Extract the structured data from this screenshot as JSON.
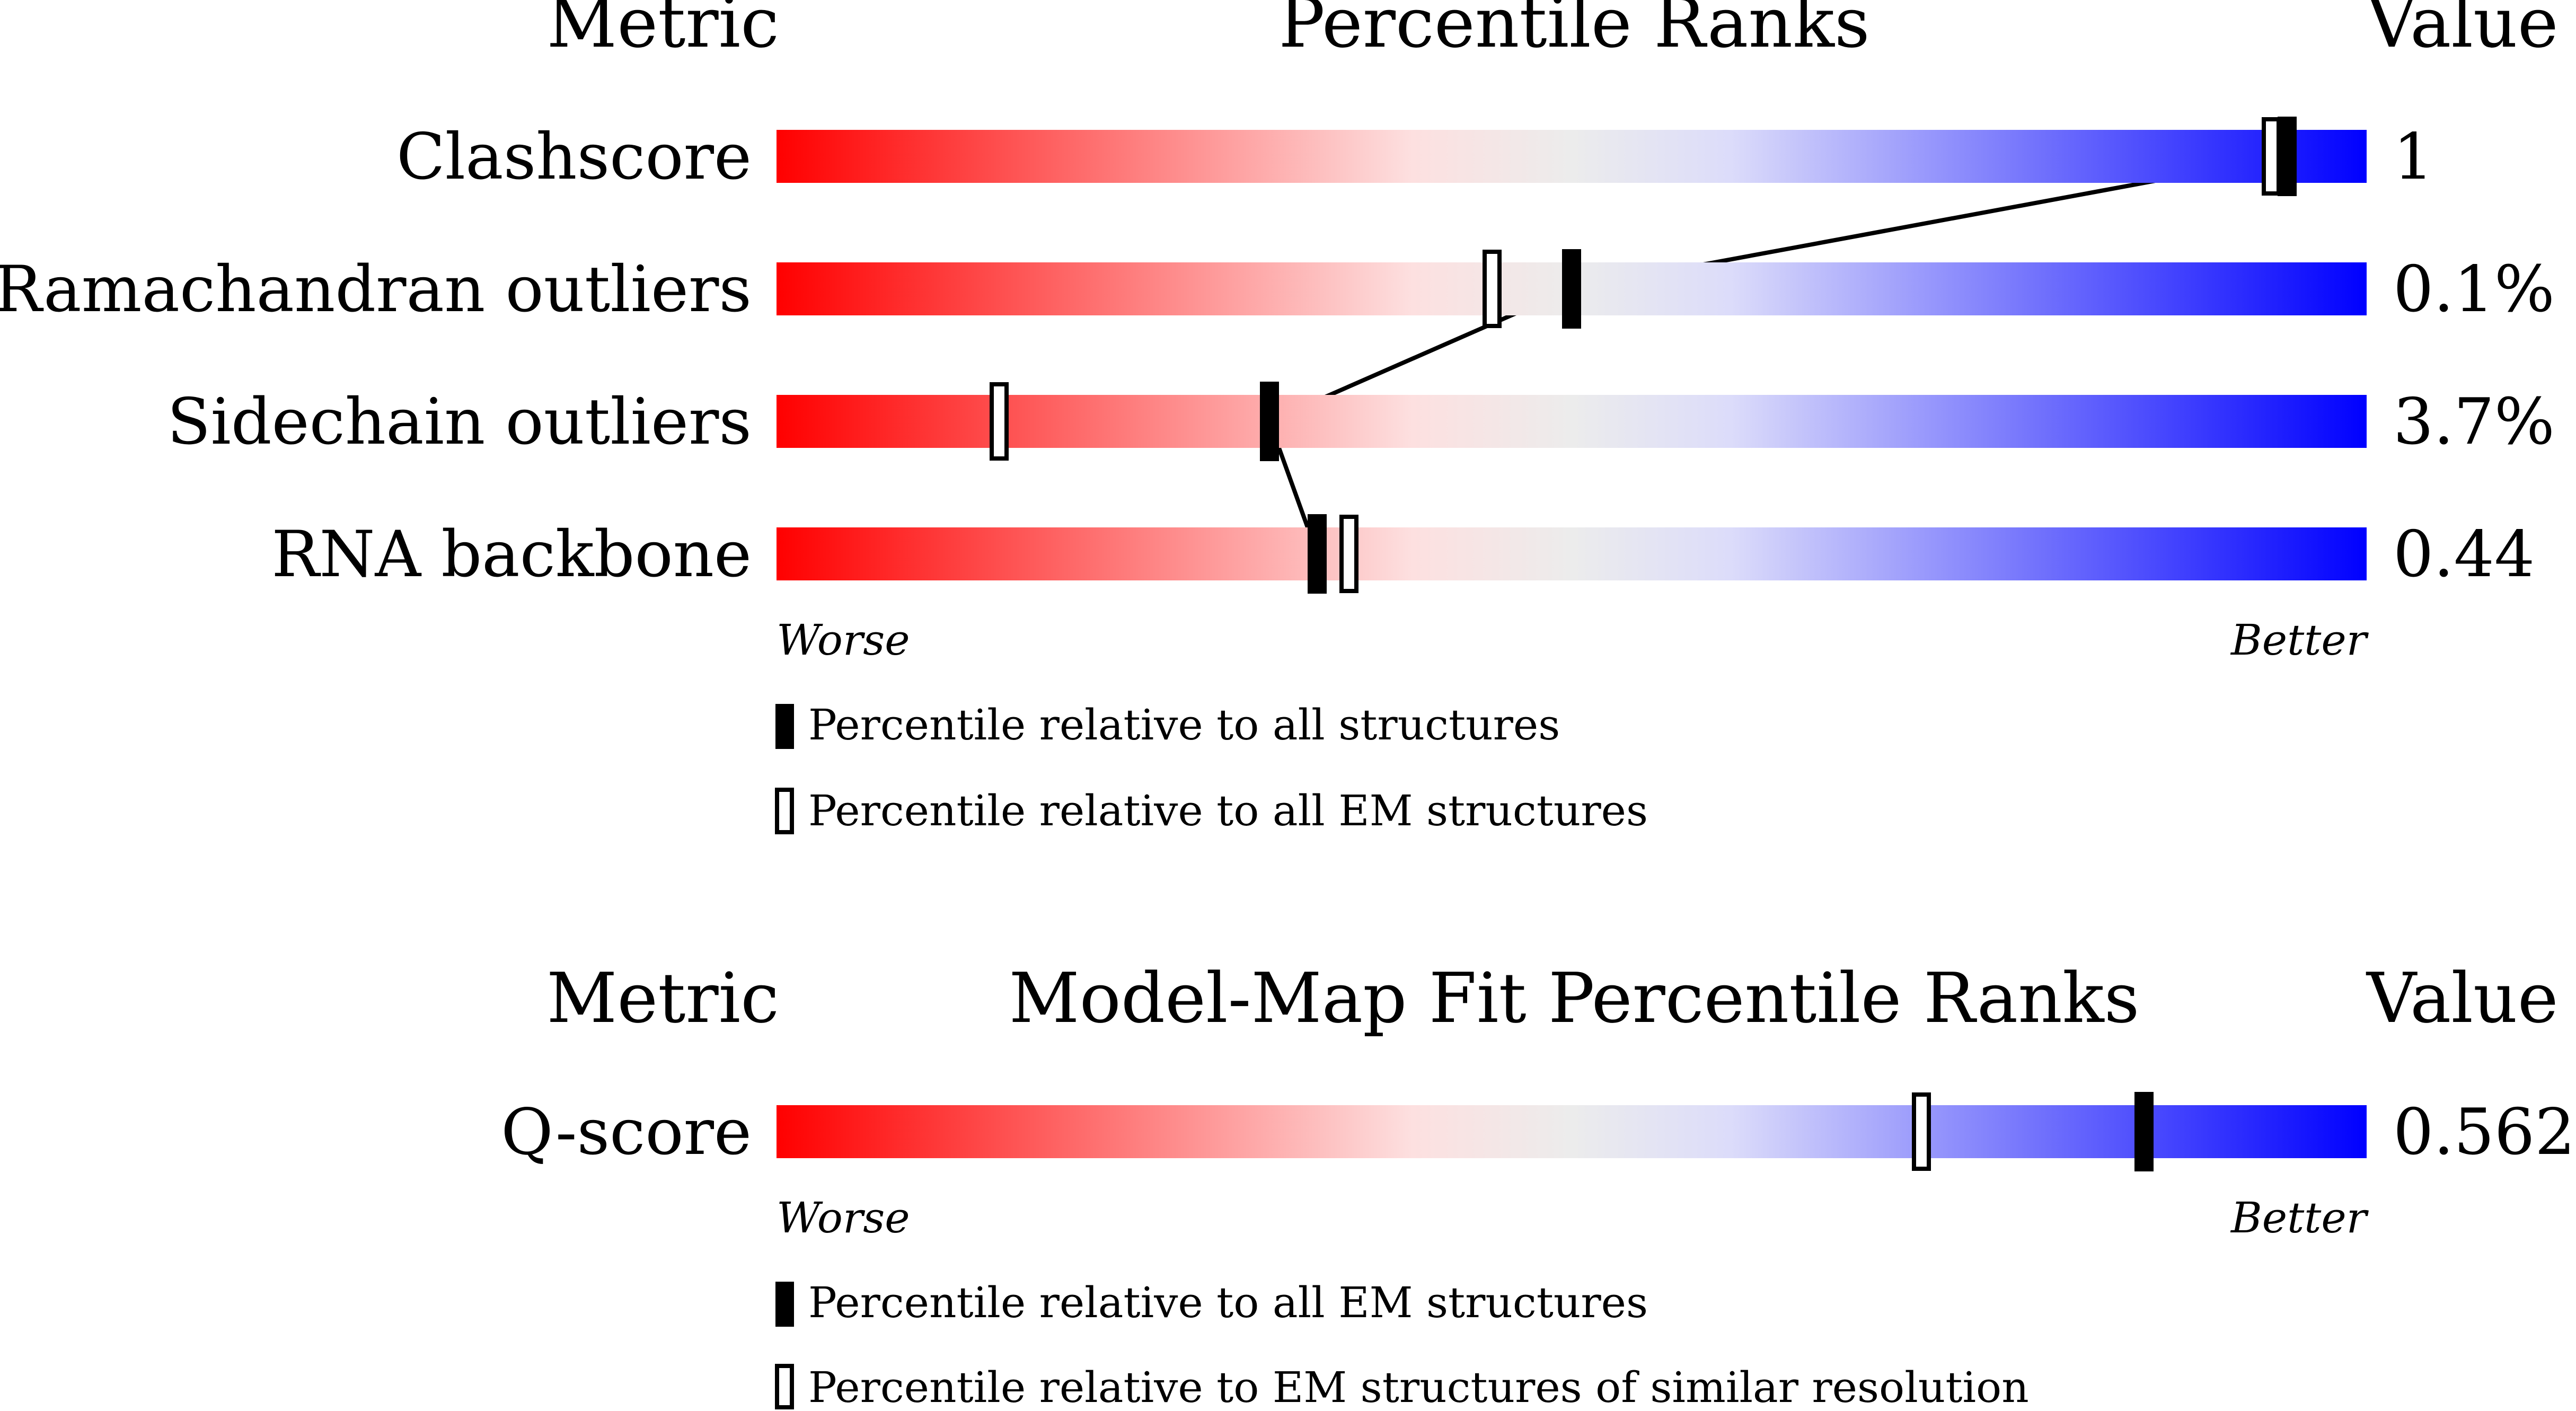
{
  "chart_data": [
    {
      "type": "bar",
      "header": {
        "metric": "Metric",
        "title": "Percentile Ranks",
        "value": "Value"
      },
      "rows": [
        {
          "label": "Clashscore",
          "value": "1",
          "all": 95,
          "subset": 94
        },
        {
          "label": "Ramachandran outliers",
          "value": "0.1%",
          "all": 50,
          "subset": 45
        },
        {
          "label": "Sidechain outliers",
          "value": "3.7%",
          "all": 31,
          "subset": 14
        },
        {
          "label": "RNA backbone",
          "value": "0.44",
          "all": 34,
          "subset": 36
        }
      ],
      "axis": {
        "worse": "Worse",
        "better": "Better",
        "xlim": [
          0,
          100
        ]
      },
      "legend": [
        {
          "marker": "filled",
          "text": "Percentile relative to all structures"
        },
        {
          "marker": "open",
          "text": "Percentile relative to all EM structures"
        }
      ]
    },
    {
      "type": "bar",
      "header": {
        "metric": "Metric",
        "title": "Model-Map Fit Percentile Ranks",
        "value": "Value"
      },
      "rows": [
        {
          "label": "Q-score",
          "value": "0.562",
          "all": 86,
          "subset": 72
        }
      ],
      "axis": {
        "worse": "Worse",
        "better": "Better",
        "xlim": [
          0,
          100
        ]
      },
      "legend": [
        {
          "marker": "filled",
          "text": "Percentile relative to all EM structures"
        },
        {
          "marker": "open",
          "text": "Percentile relative to EM structures of similar resolution"
        }
      ]
    }
  ],
  "colors": {
    "worse": "#ff0000",
    "mid_red": "#fde0e0",
    "neutral": "#ececec",
    "mid_blue": "#dcdcfa",
    "better": "#0000ff",
    "marker": "#000000"
  }
}
